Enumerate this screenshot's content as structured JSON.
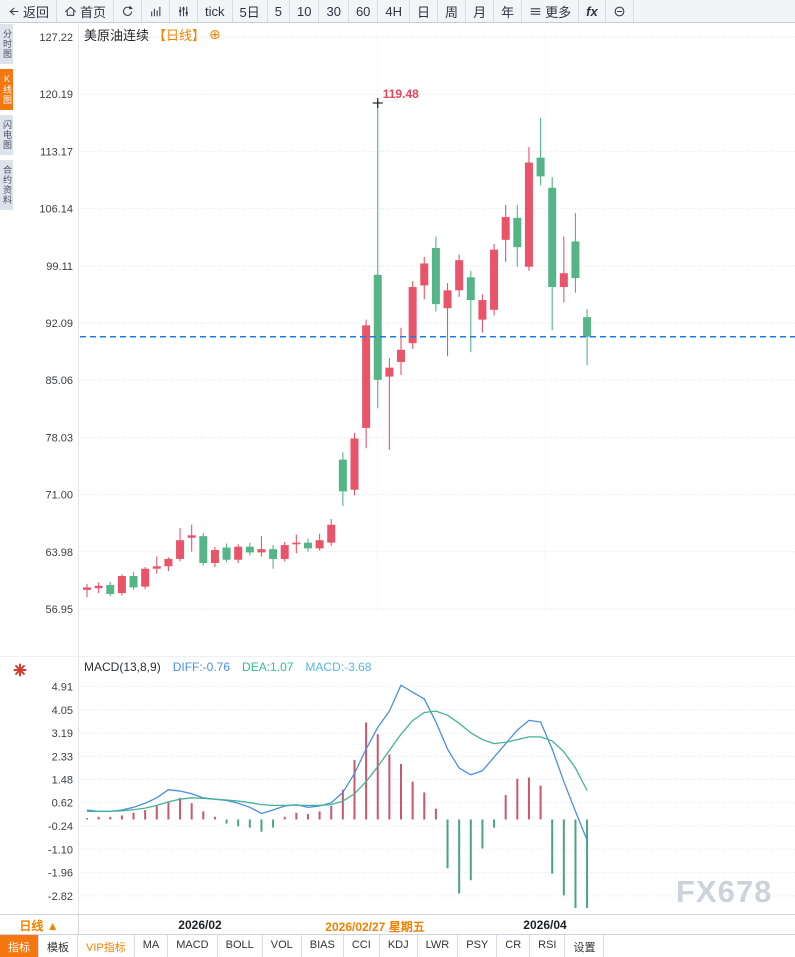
{
  "toolbar": {
    "items": [
      {
        "name": "back",
        "icon": "back",
        "label": "返回"
      },
      {
        "name": "home",
        "icon": "home",
        "label": "首页"
      },
      {
        "name": "refresh",
        "icon": "refresh",
        "label": ""
      },
      {
        "name": "chart-style",
        "icon": "bar-chart",
        "label": ""
      },
      {
        "name": "indicator-settings",
        "icon": "sliders",
        "label": ""
      },
      {
        "name": "period-tick",
        "icon": "",
        "label": "tick"
      },
      {
        "name": "period-5day",
        "icon": "",
        "label": "5日"
      },
      {
        "name": "period-5min",
        "icon": "",
        "label": "5"
      },
      {
        "name": "period-10min",
        "icon": "",
        "label": "10"
      },
      {
        "name": "period-30min",
        "icon": "",
        "label": "30"
      },
      {
        "name": "period-60min",
        "icon": "",
        "label": "60"
      },
      {
        "name": "period-4h",
        "icon": "",
        "label": "4H"
      },
      {
        "name": "period-day",
        "icon": "",
        "label": "日"
      },
      {
        "name": "period-week",
        "icon": "",
        "label": "周"
      },
      {
        "name": "period-month",
        "icon": "",
        "label": "月"
      },
      {
        "name": "period-year",
        "icon": "",
        "label": "年"
      },
      {
        "name": "more",
        "icon": "menu",
        "label": "更多"
      },
      {
        "name": "fx",
        "icon": "fx",
        "label": ""
      },
      {
        "name": "zoom-out",
        "icon": "circle-minus",
        "label": ""
      }
    ]
  },
  "sidebar": {
    "items": [
      {
        "name": "time-chart",
        "label": "分时图",
        "active": false
      },
      {
        "name": "kline-chart",
        "label": "K线图",
        "active": true
      },
      {
        "name": "lightning-chart",
        "label": "闪电图",
        "active": false
      },
      {
        "name": "contract-info",
        "label": "合约资料",
        "active": false
      }
    ]
  },
  "chart_header": {
    "symbol": "美原油连续",
    "period": "【日线】",
    "expand_icon": "⊕"
  },
  "macd_header": {
    "name": "MACD(13,8,9)",
    "diff_label": "DIFF:-0.76",
    "dea_label": "DEA:1.07",
    "macd_label": "MACD:-3.68"
  },
  "bottom": {
    "period_label": "日线 ▲",
    "tabs": [
      {
        "name": "indicator",
        "label": "指标",
        "style": "active"
      },
      {
        "name": "template",
        "label": "模板",
        "style": ""
      },
      {
        "name": "vip-indicator",
        "label": "VIP指标",
        "style": "vip"
      },
      {
        "name": "ma",
        "label": "MA",
        "style": ""
      },
      {
        "name": "macd",
        "label": "MACD",
        "style": ""
      },
      {
        "name": "boll",
        "label": "BOLL",
        "style": ""
      },
      {
        "name": "vol",
        "label": "VOL",
        "style": ""
      },
      {
        "name": "bias",
        "label": "BIAS",
        "style": ""
      },
      {
        "name": "cci",
        "label": "CCI",
        "style": ""
      },
      {
        "name": "kdj",
        "label": "KDJ",
        "style": ""
      },
      {
        "name": "lwr",
        "label": "LWR",
        "style": ""
      },
      {
        "name": "psy",
        "label": "PSY",
        "style": ""
      },
      {
        "name": "cr",
        "label": "CR",
        "style": ""
      },
      {
        "name": "rsi",
        "label": "RSI",
        "style": ""
      },
      {
        "name": "settings",
        "label": "设置",
        "style": ""
      }
    ]
  },
  "watermark": "FX678",
  "chart_data": {
    "type": "candlestick",
    "title": "美原油连续 日线",
    "indicator": "MACD(13,8,9)",
    "price_axis_ticks": [
      127.22,
      120.19,
      113.17,
      106.14,
      99.11,
      92.09,
      85.06,
      78.03,
      71.0,
      63.98,
      56.95
    ],
    "macd_axis_ticks": [
      4.91,
      4.05,
      3.19,
      2.33,
      1.48,
      0.62,
      -0.24,
      -1.1,
      -1.96,
      -2.82
    ],
    "x_labels": [
      {
        "text": "2026/02",
        "highlight": false
      },
      {
        "text": "2026/02/27 星期五",
        "highlight": true
      },
      {
        "text": "2026/04",
        "highlight": false
      }
    ],
    "last_price": 90.4,
    "high_annotation": {
      "value": 119.48,
      "label": "119.48",
      "candle_index": 25
    },
    "candles": [
      [
        59.3,
        60.0,
        58.4,
        59.6
      ],
      [
        59.5,
        60.2,
        58.9,
        59.8
      ],
      [
        59.9,
        60.3,
        58.5,
        58.8
      ],
      [
        58.9,
        61.2,
        58.6,
        61.0
      ],
      [
        61.0,
        61.5,
        59.3,
        59.6
      ],
      [
        59.7,
        62.1,
        59.4,
        61.9
      ],
      [
        61.9,
        63.4,
        61.3,
        62.2
      ],
      [
        62.2,
        63.3,
        61.6,
        63.1
      ],
      [
        63.1,
        66.9,
        62.8,
        65.4
      ],
      [
        65.7,
        67.3,
        64.0,
        66.0
      ],
      [
        65.9,
        66.3,
        62.3,
        62.6
      ],
      [
        62.6,
        64.6,
        62.1,
        64.2
      ],
      [
        64.5,
        65.0,
        62.7,
        63.0
      ],
      [
        63.0,
        64.9,
        62.6,
        64.6
      ],
      [
        64.6,
        65.1,
        63.5,
        63.9
      ],
      [
        63.9,
        65.9,
        63.4,
        64.3
      ],
      [
        64.3,
        64.8,
        61.9,
        63.1
      ],
      [
        63.1,
        65.2,
        62.8,
        64.8
      ],
      [
        64.9,
        66.1,
        63.8,
        65.1
      ],
      [
        65.1,
        65.6,
        64.0,
        64.4
      ],
      [
        64.4,
        66.2,
        64.1,
        65.4
      ],
      [
        65.1,
        68.0,
        64.7,
        67.3
      ],
      [
        75.3,
        76.2,
        69.6,
        71.4
      ],
      [
        71.6,
        78.6,
        70.9,
        77.9
      ],
      [
        79.2,
        92.5,
        76.7,
        91.8
      ],
      [
        98.0,
        119.48,
        81.6,
        85.1
      ],
      [
        85.5,
        87.8,
        76.5,
        86.6
      ],
      [
        87.3,
        91.5,
        85.7,
        88.8
      ],
      [
        89.6,
        97.2,
        88.9,
        96.5
      ],
      [
        96.7,
        100.2,
        95.0,
        99.4
      ],
      [
        101.3,
        102.7,
        93.5,
        94.4
      ],
      [
        93.9,
        97.0,
        88.0,
        96.1
      ],
      [
        96.1,
        100.5,
        95.3,
        99.8
      ],
      [
        97.7,
        98.5,
        88.5,
        94.9
      ],
      [
        92.5,
        95.6,
        90.9,
        94.9
      ],
      [
        93.7,
        101.8,
        93.0,
        101.1
      ],
      [
        102.3,
        106.6,
        99.6,
        105.1
      ],
      [
        105.0,
        106.6,
        99.0,
        101.4
      ],
      [
        99.0,
        113.7,
        98.5,
        111.8
      ],
      [
        112.4,
        117.3,
        109.0,
        110.1
      ],
      [
        108.7,
        110.0,
        91.2,
        96.5
      ],
      [
        96.5,
        102.7,
        94.6,
        98.2
      ],
      [
        102.1,
        105.6,
        95.8,
        97.6
      ],
      [
        92.8,
        93.8,
        86.9,
        90.4
      ]
    ],
    "macd": {
      "diff": [
        0.35,
        0.3,
        0.3,
        0.35,
        0.45,
        0.6,
        0.8,
        1.1,
        1.05,
        0.95,
        0.8,
        0.75,
        0.7,
        0.6,
        0.45,
        0.22,
        0.35,
        0.5,
        0.55,
        0.45,
        0.5,
        0.62,
        1.0,
        1.7,
        2.6,
        3.4,
        4.0,
        4.96,
        4.7,
        4.45,
        3.6,
        2.6,
        1.9,
        1.65,
        1.8,
        2.3,
        2.8,
        3.3,
        3.66,
        3.6,
        2.6,
        1.4,
        0.3,
        -0.76
      ],
      "dea": [
        0.3,
        0.3,
        0.3,
        0.32,
        0.36,
        0.42,
        0.52,
        0.65,
        0.75,
        0.8,
        0.78,
        0.75,
        0.72,
        0.68,
        0.62,
        0.55,
        0.52,
        0.52,
        0.53,
        0.52,
        0.52,
        0.55,
        0.68,
        0.95,
        1.4,
        1.95,
        2.55,
        3.15,
        3.65,
        3.95,
        4.0,
        3.85,
        3.55,
        3.2,
        2.95,
        2.8,
        2.85,
        2.95,
        3.05,
        3.05,
        2.9,
        2.5,
        1.9,
        1.07
      ],
      "hist": [
        0.05,
        0.1,
        0.1,
        0.15,
        0.25,
        0.35,
        0.5,
        0.65,
        0.8,
        0.6,
        0.3,
        0.1,
        -0.15,
        -0.25,
        -0.3,
        -0.45,
        -0.3,
        0.1,
        0.25,
        0.2,
        0.3,
        0.5,
        1.1,
        2.2,
        3.58,
        3.15,
        2.4,
        2.05,
        1.4,
        1.0,
        0.4,
        -1.8,
        -2.73,
        -2.24,
        -1.07,
        -0.3,
        0.9,
        1.5,
        1.55,
        1.25,
        -2.0,
        -2.8,
        -3.3,
        -3.68
      ]
    },
    "colors": {
      "up": "#e9546a",
      "down": "#55b488",
      "diff_line": "#4a8fe2",
      "dea_line": "#43b397",
      "hist_up": "#c9586b",
      "hist_down": "#4aa47e",
      "last_price_line": "#1d7be6",
      "annotation": "#e8445a",
      "highlight_label": "#f08200"
    }
  }
}
